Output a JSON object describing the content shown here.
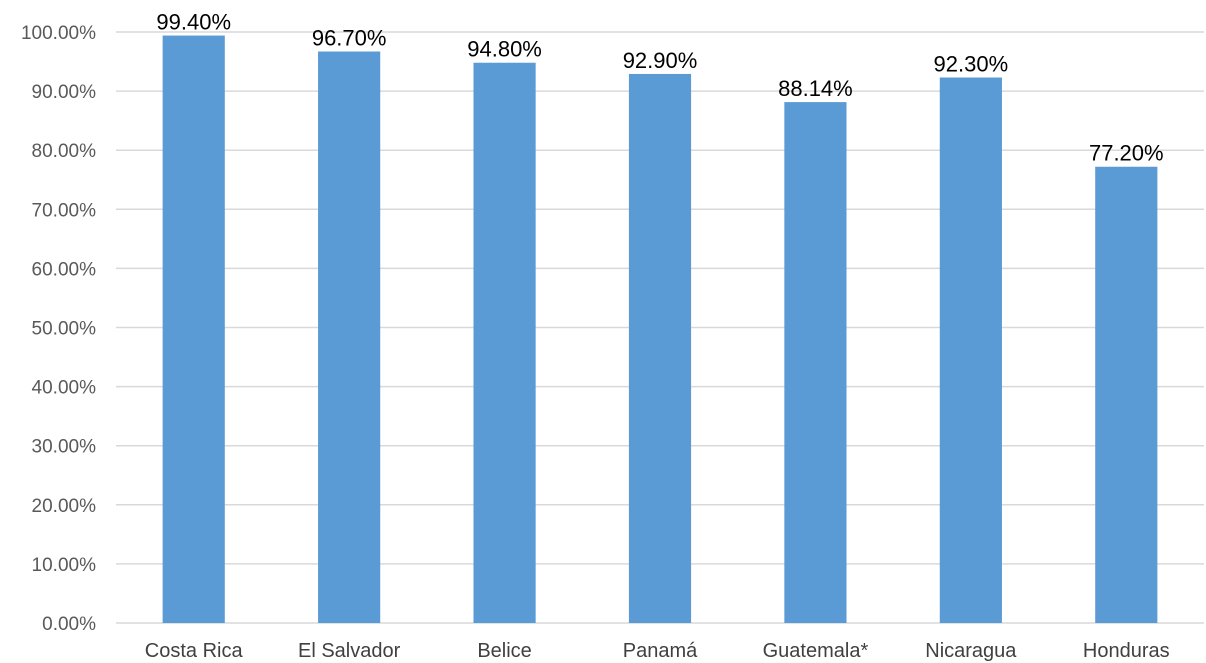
{
  "chart_data": {
    "type": "bar",
    "title": "",
    "xlabel": "",
    "ylabel": "",
    "categories": [
      "Costa Rica",
      "El Salvador",
      "Belice",
      "Panamá",
      "Guatemala*",
      "Nicaragua",
      "Honduras"
    ],
    "values": [
      99.4,
      96.7,
      94.8,
      92.9,
      88.14,
      92.3,
      77.2
    ],
    "data_labels": [
      "99.40%",
      "96.70%",
      "94.80%",
      "92.90%",
      "88.14%",
      "92.30%",
      "77.20%"
    ],
    "ylim": [
      0,
      100
    ],
    "yticks": [
      0,
      10,
      20,
      30,
      40,
      50,
      60,
      70,
      80,
      90,
      100
    ],
    "ytick_labels": [
      "0.00%",
      "10.00%",
      "20.00%",
      "30.00%",
      "40.00%",
      "50.00%",
      "60.00%",
      "70.00%",
      "80.00%",
      "90.00%",
      "100.00%"
    ],
    "grid": true,
    "legend": "none",
    "bar_color": "#5b9bd5"
  }
}
